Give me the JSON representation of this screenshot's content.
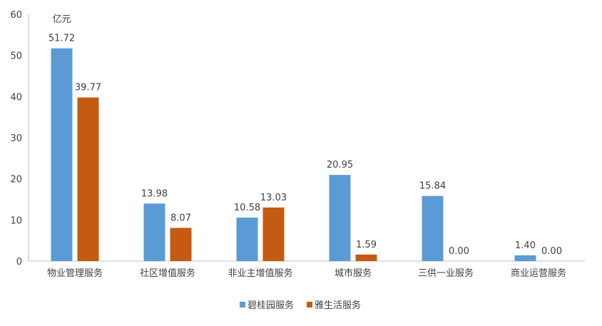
{
  "chart_data": {
    "type": "bar",
    "unit_label": "亿元",
    "categories": [
      "物业管理服务",
      "社区增值服务",
      "非业主增值服务",
      "城市服务",
      "三供一业服务",
      "商业运营服务"
    ],
    "series": [
      {
        "name": "碧桂园服务",
        "color": "#5B9BD5",
        "values": [
          51.72,
          13.98,
          10.58,
          20.95,
          15.84,
          1.4
        ],
        "labels": [
          "51.72",
          "13.98",
          "10.58",
          "20.95",
          "15.84",
          "1.40"
        ]
      },
      {
        "name": "雅生活服务",
        "color": "#C55A11",
        "values": [
          39.77,
          8.07,
          13.03,
          1.59,
          0.0,
          0.0
        ],
        "labels": [
          "39.77",
          "8.07",
          "13.03",
          "1.59",
          "0.00",
          "0.00"
        ]
      }
    ],
    "y_ticks": [
      "0",
      "10",
      "20",
      "30",
      "40",
      "50",
      "60"
    ],
    "ylim": [
      0,
      60
    ],
    "grid": false,
    "legend_position": "bottom"
  }
}
